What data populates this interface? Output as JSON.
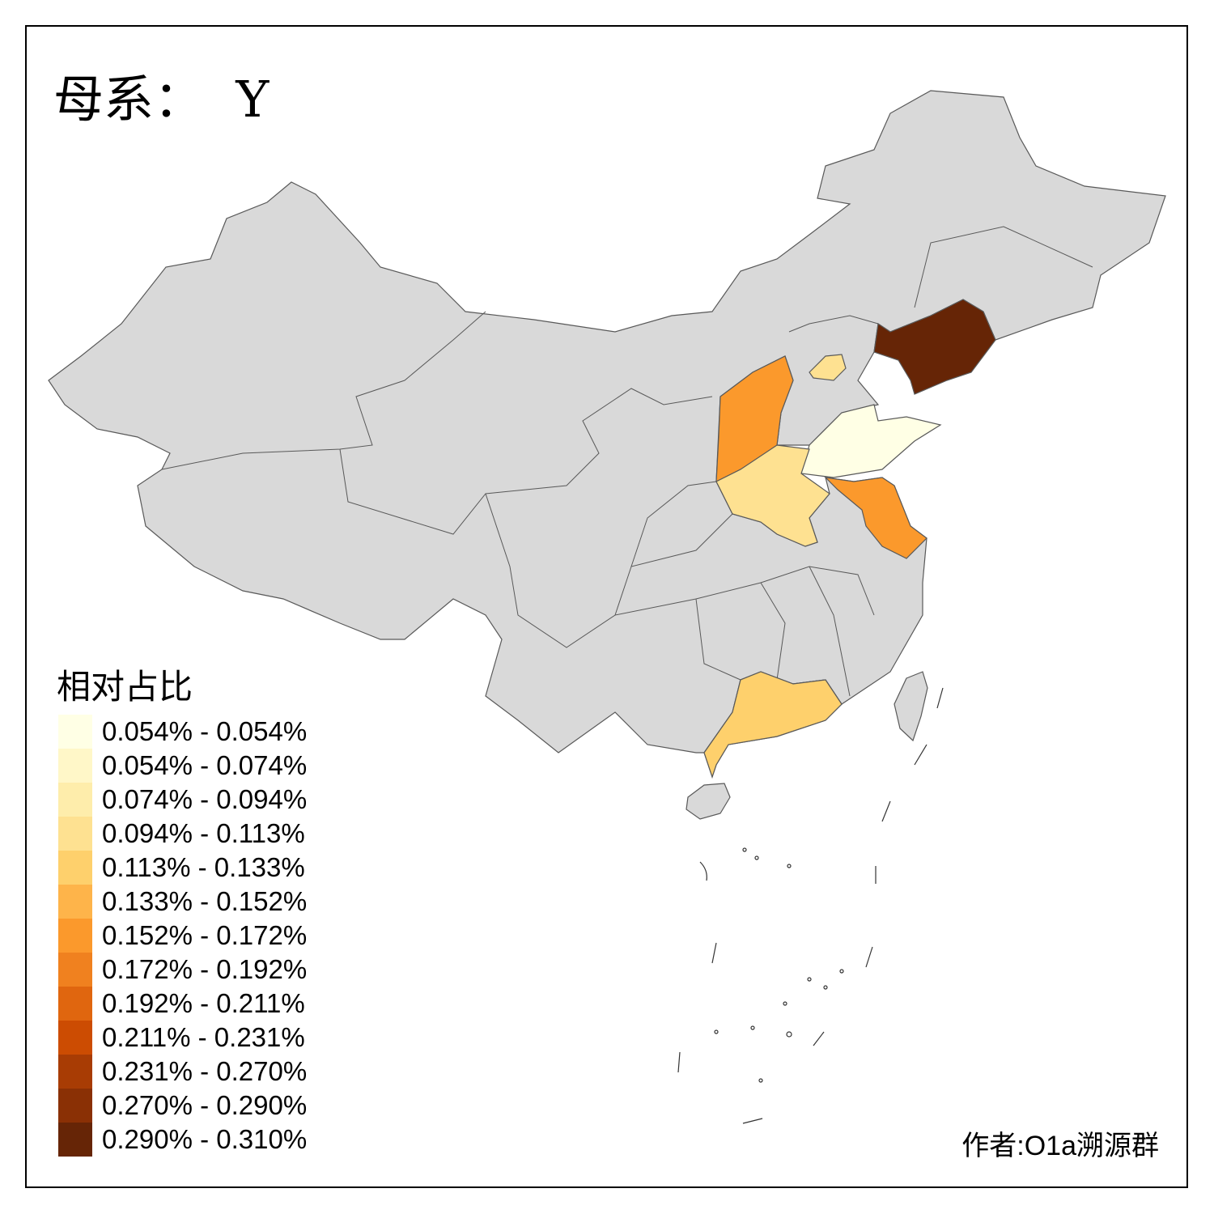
{
  "title": "母系：  Y",
  "legend": {
    "title": "相对占比",
    "bins": [
      {
        "label": "0.054% - 0.054%",
        "color": "#FFFFE5"
      },
      {
        "label": "0.054% - 0.074%",
        "color": "#FFF7C8"
      },
      {
        "label": "0.074% - 0.094%",
        "color": "#FEEDAB"
      },
      {
        "label": "0.094% - 0.113%",
        "color": "#FEE191"
      },
      {
        "label": "0.113% - 0.133%",
        "color": "#FED06C"
      },
      {
        "label": "0.133% - 0.152%",
        "color": "#FEB44A"
      },
      {
        "label": "0.152% - 0.172%",
        "color": "#FB992C"
      },
      {
        "label": "0.172% - 0.192%",
        "color": "#F0811F"
      },
      {
        "label": "0.192% - 0.211%",
        "color": "#E0660F"
      },
      {
        "label": "0.211% - 0.231%",
        "color": "#CC4C02"
      },
      {
        "label": "0.231% - 0.270%",
        "color": "#A83C04"
      },
      {
        "label": "0.270% - 0.290%",
        "color": "#8A3005"
      },
      {
        "label": "0.290% - 0.310%",
        "color": "#662506"
      }
    ]
  },
  "map": {
    "no_data_color": "#D9D9D9",
    "border_color": "#595959",
    "region_bins": {
      "liaoning": 12,
      "shanxi": 6,
      "jiangsu": 6,
      "guangdong": 4,
      "henan": 3,
      "beijing": 3,
      "shandong": 0
    }
  },
  "author": "作者:O1a溯源群"
}
